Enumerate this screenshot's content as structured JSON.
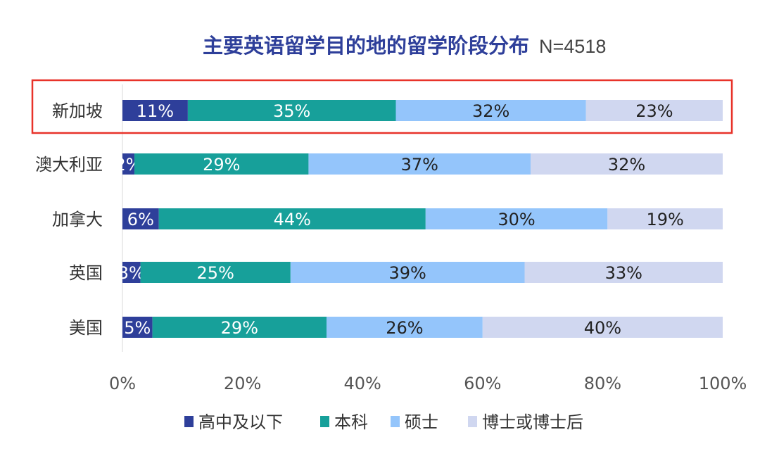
{
  "chart_data": {
    "type": "bar",
    "orientation": "horizontal",
    "stacked": true,
    "title": "主要英语留学目的地的留学阶段分布",
    "subtitle": "N=4518",
    "categories": [
      "新加坡",
      "澳大利亚",
      "加拿大",
      "英国",
      "美国"
    ],
    "series": [
      {
        "name": "高中及以下",
        "color": "#2e3f9a",
        "values": [
          11,
          2,
          6,
          3,
          5
        ]
      },
      {
        "name": "本科",
        "color": "#17a09a",
        "values": [
          35,
          29,
          44,
          25,
          29
        ]
      },
      {
        "name": "硕士",
        "color": "#94c5fb",
        "values": [
          32,
          37,
          30,
          39,
          26
        ]
      },
      {
        "name": "博士或博士后",
        "color": "#d0d7f0",
        "values": [
          23,
          32,
          19,
          33,
          40
        ]
      }
    ],
    "xlim": [
      0,
      100
    ],
    "x_ticks": [
      "0%",
      "20%",
      "40%",
      "60%",
      "80%",
      "100%"
    ],
    "grid": false,
    "legend": "bottom",
    "highlight": {
      "category": "新加坡",
      "color": "#e8332a"
    }
  }
}
